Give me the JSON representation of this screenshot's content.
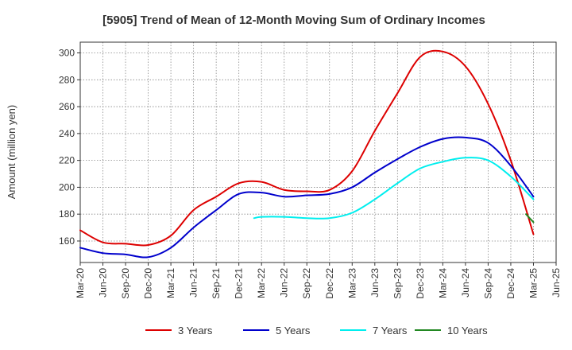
{
  "chart_data": {
    "type": "line",
    "title": "[5905]  Trend of Mean of 12-Month Moving Sum of Ordinary Incomes",
    "xlabel": "",
    "ylabel": "Amount (million yen)",
    "ylim": [
      144,
      308
    ],
    "yticks": [
      160,
      180,
      200,
      220,
      240,
      260,
      280,
      300
    ],
    "grid": true,
    "legend_position": "bottom",
    "categories": [
      "Mar-20",
      "Jun-20",
      "Sep-20",
      "Dec-20",
      "Mar-21",
      "Jun-21",
      "Sep-21",
      "Dec-21",
      "Mar-22",
      "Jun-22",
      "Sep-22",
      "Dec-22",
      "Mar-23",
      "Jun-23",
      "Sep-23",
      "Dec-23",
      "Mar-24",
      "Jun-24",
      "Sep-24",
      "Dec-24",
      "Mar-25",
      "Jun-25"
    ],
    "series": [
      {
        "name": "3 Years",
        "color": "#dd0000",
        "points": [
          [
            0,
            168
          ],
          [
            1,
            159
          ],
          [
            2,
            158
          ],
          [
            3,
            157
          ],
          [
            4,
            164
          ],
          [
            5,
            183
          ],
          [
            6,
            193
          ],
          [
            7,
            203
          ],
          [
            8,
            204
          ],
          [
            9,
            198
          ],
          [
            10,
            197
          ],
          [
            11,
            198
          ],
          [
            12,
            212
          ],
          [
            13,
            242
          ],
          [
            14,
            270
          ],
          [
            15,
            297
          ],
          [
            16,
            301
          ],
          [
            17,
            290
          ],
          [
            18,
            262
          ],
          [
            19,
            220
          ],
          [
            20,
            165
          ]
        ]
      },
      {
        "name": "5 Years",
        "color": "#0000cc",
        "points": [
          [
            0,
            155
          ],
          [
            1,
            151
          ],
          [
            2,
            150
          ],
          [
            3,
            148
          ],
          [
            4,
            155
          ],
          [
            5,
            170
          ],
          [
            6,
            183
          ],
          [
            7,
            195
          ],
          [
            8,
            196
          ],
          [
            9,
            193
          ],
          [
            10,
            194
          ],
          [
            11,
            195
          ],
          [
            12,
            200
          ],
          [
            13,
            211
          ],
          [
            14,
            221
          ],
          [
            15,
            230
          ],
          [
            16,
            236
          ],
          [
            17,
            237
          ],
          [
            18,
            233
          ],
          [
            19,
            216
          ],
          [
            20,
            193
          ]
        ]
      },
      {
        "name": "7 Years",
        "color": "#00eeee",
        "points": [
          [
            7.67,
            177
          ],
          [
            8,
            178
          ],
          [
            9,
            178
          ],
          [
            10,
            177
          ],
          [
            11,
            177
          ],
          [
            12,
            181
          ],
          [
            13,
            191
          ],
          [
            14,
            203
          ],
          [
            15,
            214
          ],
          [
            16,
            219
          ],
          [
            17,
            222
          ],
          [
            18,
            220
          ],
          [
            19,
            208
          ],
          [
            20,
            191
          ]
        ]
      },
      {
        "name": "10 Years",
        "color": "#228822",
        "points": [
          [
            19.67,
            180
          ],
          [
            20,
            174
          ]
        ]
      }
    ]
  }
}
